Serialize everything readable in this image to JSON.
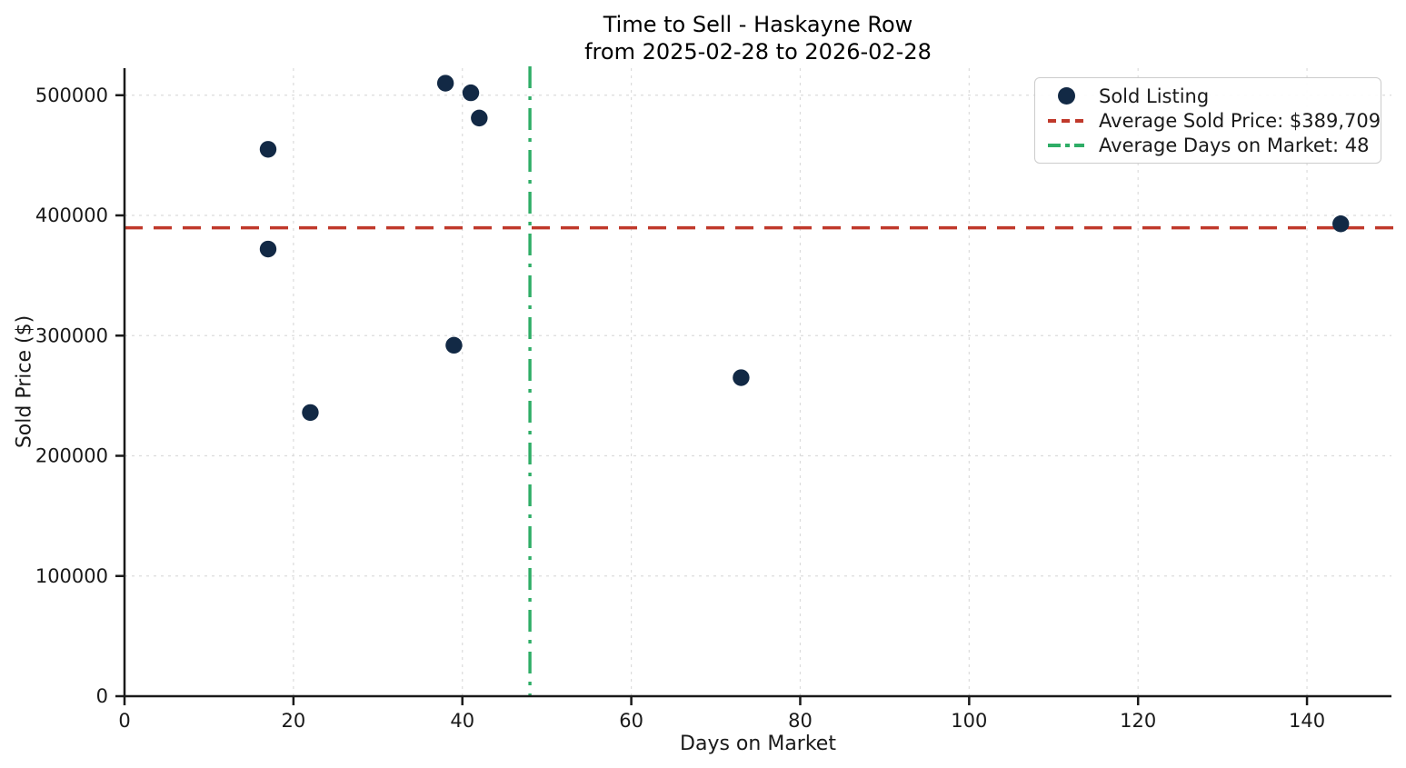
{
  "chart_data": {
    "type": "scatter",
    "title": "Time to Sell - Haskayne Row",
    "subtitle": "from 2025-02-28 to 2026-02-28",
    "xlabel": "Days on Market",
    "ylabel": "Sold Price ($)",
    "xlim": [
      0,
      150
    ],
    "ylim": [
      0,
      522500
    ],
    "xticks": [
      0,
      20,
      40,
      60,
      80,
      100,
      120,
      140
    ],
    "yticks": [
      0,
      100000,
      200000,
      300000,
      400000,
      500000
    ],
    "grid": true,
    "legend_position": "upper right",
    "colors": {
      "point": "#122945",
      "avg_price_line": "#c0392b",
      "avg_days_line": "#2ead66",
      "gridline": "#dcdcdc",
      "spine": "#1a1a1a"
    },
    "series": [
      {
        "name": "Sold Listing",
        "kind": "scatter",
        "points": [
          {
            "days_on_market": 17,
            "sold_price": 455000
          },
          {
            "days_on_market": 17,
            "sold_price": 372000
          },
          {
            "days_on_market": 22,
            "sold_price": 236000
          },
          {
            "days_on_market": 38,
            "sold_price": 510000
          },
          {
            "days_on_market": 41,
            "sold_price": 502000
          },
          {
            "days_on_market": 42,
            "sold_price": 481000
          },
          {
            "days_on_market": 39,
            "sold_price": 292000
          },
          {
            "days_on_market": 73,
            "sold_price": 265000
          },
          {
            "days_on_market": 144,
            "sold_price": 393000
          }
        ]
      },
      {
        "name": "Average Sold Price: $389,709",
        "kind": "hline",
        "value": 389709,
        "style": "dashed"
      },
      {
        "name": "Average Days on Market: 48",
        "kind": "vline",
        "value": 48,
        "style": "dashdot"
      }
    ]
  }
}
